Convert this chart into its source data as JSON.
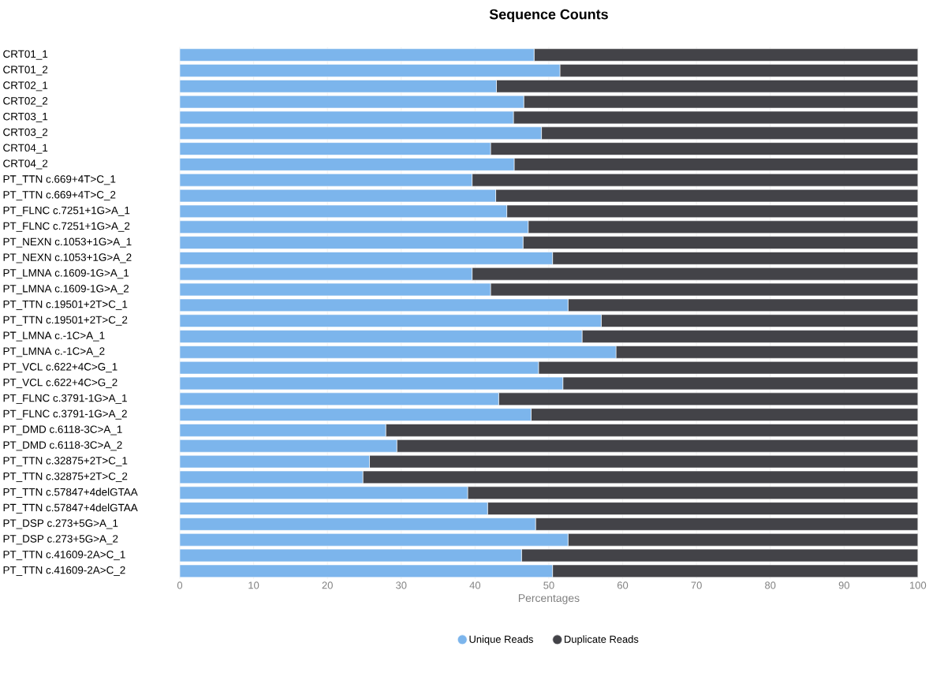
{
  "chart_data": {
    "type": "bar",
    "orientation": "horizontal",
    "stacked": true,
    "title": "Sequence Counts",
    "xlabel": "Percentages",
    "categories": [
      "CRT01_1",
      "CRT01_2",
      "CRT02_1",
      "CRT02_2",
      "CRT03_1",
      "CRT03_2",
      "CRT04_1",
      "CRT04_2",
      "PT_TTN c.669+4T>C_1",
      "PT_TTN c.669+4T>C_2",
      "PT_FLNC c.7251+1G>A_1",
      "PT_FLNC c.7251+1G>A_2",
      "PT_NEXN c.1053+1G>A_1",
      "PT_NEXN c.1053+1G>A_2",
      "PT_LMNA c.1609-1G>A_1",
      "PT_LMNA c.1609-1G>A_2",
      "PT_TTN c.19501+2T>C_1",
      "PT_TTN c.19501+2T>C_2",
      "PT_LMNA c.-1C>A_1",
      "PT_LMNA c.-1C>A_2",
      "PT_VCL c.622+4C>G_1",
      "PT_VCL c.622+4C>G_2",
      "PT_FLNC c.3791-1G>A_1",
      "PT_FLNC c.3791-1G>A_2",
      "PT_DMD c.6118-3C>A_1",
      "PT_DMD c.6118-3C>A_2",
      "PT_TTN c.32875+2T>C_1",
      "PT_TTN c.32875+2T>C_2",
      "PT_TTN c.57847+4delGTAA",
      "PT_TTN c.57847+4delGTAA",
      "PT_DSP c.273+5G>A_1",
      "PT_DSP c.273+5G>A_2",
      "PT_TTN c.41609-2A>C_1",
      "PT_TTN c.41609-2A>C_2"
    ],
    "series": [
      {
        "name": "Unique Reads",
        "color": "#7cb5ec",
        "values": [
          48.0,
          51.5,
          42.9,
          46.6,
          45.2,
          49.0,
          42.1,
          45.3,
          39.6,
          42.8,
          44.3,
          47.2,
          46.5,
          50.5,
          39.6,
          42.1,
          52.6,
          57.1,
          54.5,
          59.1,
          48.6,
          51.9,
          43.2,
          47.6,
          27.9,
          29.4,
          25.7,
          24.8,
          39.0,
          41.7,
          48.2,
          52.6,
          46.3,
          50.5
        ]
      },
      {
        "name": "Duplicate Reads",
        "color": "#434348",
        "values": [
          52.0,
          48.5,
          57.1,
          53.4,
          54.8,
          51.0,
          57.9,
          54.7,
          60.4,
          57.2,
          55.7,
          52.8,
          53.5,
          49.5,
          60.4,
          57.9,
          47.4,
          42.9,
          45.5,
          40.9,
          51.4,
          48.1,
          56.8,
          52.4,
          72.1,
          70.6,
          74.3,
          75.2,
          61.0,
          58.3,
          51.8,
          47.4,
          53.7,
          49.5
        ]
      }
    ],
    "xlim": [
      0,
      100
    ],
    "xticks": [
      0,
      10,
      20,
      30,
      40,
      50,
      60,
      70,
      80,
      90,
      100
    ],
    "grid": "x",
    "legend": "bottom"
  }
}
